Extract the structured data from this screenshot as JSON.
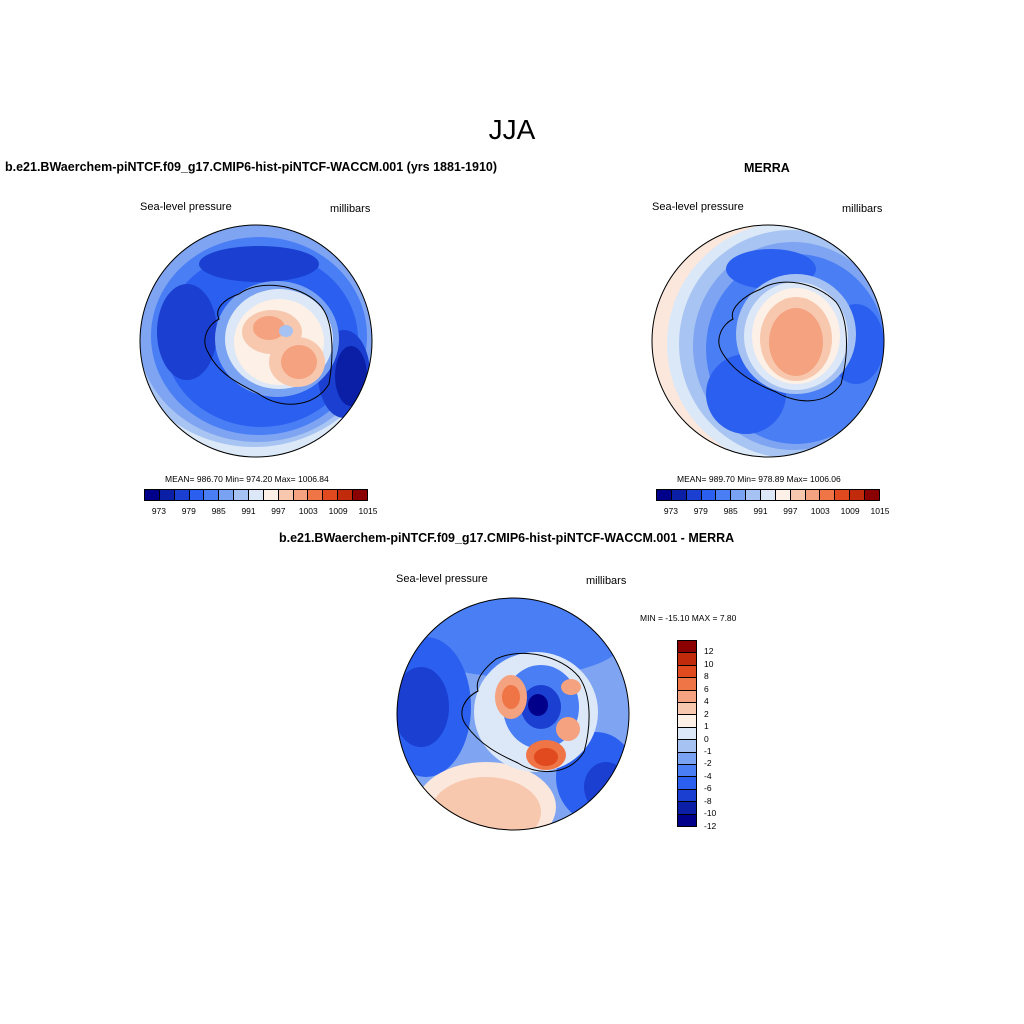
{
  "figure": {
    "title": "JJA"
  },
  "panels": {
    "model": {
      "title": "b.e21.BWaerchem-piNTCF.f09_g17.CMIP6-hist-piNTCF-WACCM.001 (yrs 1881-1910)",
      "left_label": "Sea-level pressure",
      "right_label": "millibars",
      "stats": "MEAN= 986.70  Min= 974.20  Max= 1006.84",
      "stats_values": {
        "mean": 986.7,
        "min": 974.2,
        "max": 1006.84
      }
    },
    "obs": {
      "title": "MERRA",
      "left_label": "Sea-level pressure",
      "right_label": "millibars",
      "stats": "MEAN= 989.70  Min= 978.89  Max= 1006.06",
      "stats_values": {
        "mean": 989.7,
        "min": 978.89,
        "max": 1006.06
      }
    },
    "diff": {
      "title": "b.e21.BWaerchem-piNTCF.f09_g17.CMIP6-hist-piNTCF-WACCM.001 - MERRA",
      "left_label": "Sea-level pressure",
      "right_label": "millibars",
      "stats": "MIN = -15.10 MAX =   7.80",
      "stats_values": {
        "min": -15.1,
        "max": 7.8
      }
    }
  },
  "colorbars": {
    "abs": {
      "colors": [
        "#00008b",
        "#0a1fa6",
        "#1a3fd1",
        "#2a5ff0",
        "#4a7ef5",
        "#7aa2f2",
        "#a6c2f2",
        "#dce8f8",
        "#fdf0e6",
        "#f8c8ae",
        "#f4a27f",
        "#ef7446",
        "#e04a1e",
        "#c22a0c",
        "#8b0000"
      ],
      "labels": [
        "973",
        "979",
        "985",
        "991",
        "997",
        "1003",
        "1009",
        "1015"
      ]
    },
    "diff": {
      "colors": [
        "#00008b",
        "#0a1fa6",
        "#1a3fd1",
        "#2a5ff0",
        "#4a7ef5",
        "#7aa2f2",
        "#a6c2f2",
        "#dce8f8",
        "#fdf0e6",
        "#f8c8ae",
        "#f4a27f",
        "#ef7446",
        "#e04a1e",
        "#c22a0c",
        "#8b0000"
      ],
      "labels": [
        "12",
        "10",
        "8",
        "6",
        "4",
        "2",
        "1",
        "0",
        "-1",
        "-2",
        "-4",
        "-6",
        "-8",
        "-10",
        "-12"
      ]
    }
  }
}
